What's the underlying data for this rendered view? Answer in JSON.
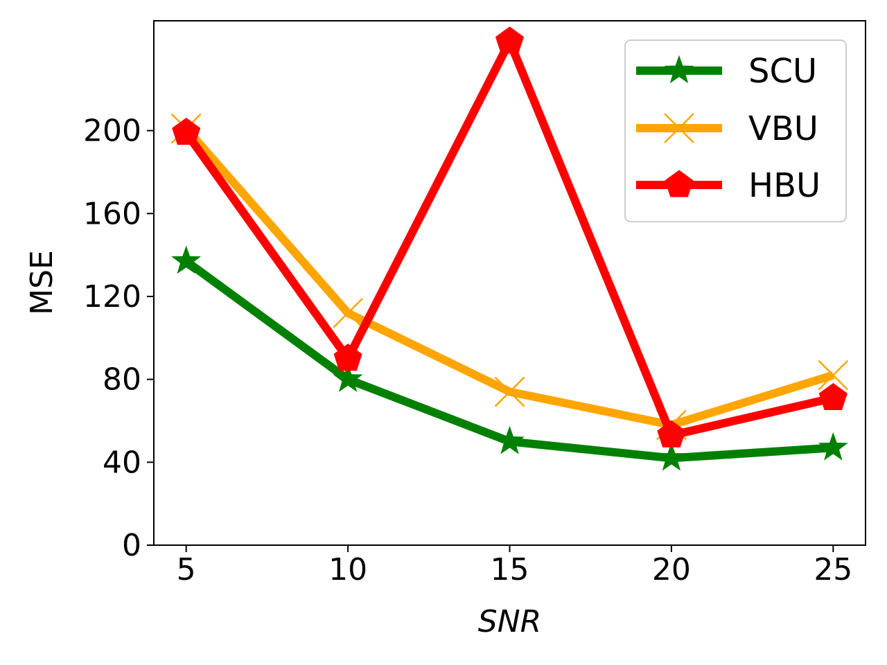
{
  "chart_data": {
    "type": "line",
    "title": "",
    "xlabel": "SNR",
    "ylabel": "MSE",
    "x": [
      5,
      10,
      15,
      20,
      25
    ],
    "xticks": [
      "5",
      "10",
      "15",
      "20",
      "25"
    ],
    "xlim": [
      4,
      26
    ],
    "yticks": [
      "0",
      "40",
      "80",
      "120",
      "160",
      "200"
    ],
    "ytick_values": [
      0,
      40,
      80,
      120,
      160,
      200
    ],
    "ylim": [
      0,
      253
    ],
    "grid": false,
    "legend_position": "top-right",
    "series": [
      {
        "name": "SCU",
        "values": [
          137,
          80,
          50,
          42,
          47
        ],
        "color": "#008000",
        "marker": "star"
      },
      {
        "name": "VBU",
        "values": [
          201,
          112,
          74,
          58,
          82
        ],
        "color": "#FFA500",
        "marker": "x"
      },
      {
        "name": "HBU",
        "values": [
          199,
          90,
          243,
          53,
          71
        ],
        "color": "#FF0000",
        "marker": "pentagon"
      }
    ]
  }
}
